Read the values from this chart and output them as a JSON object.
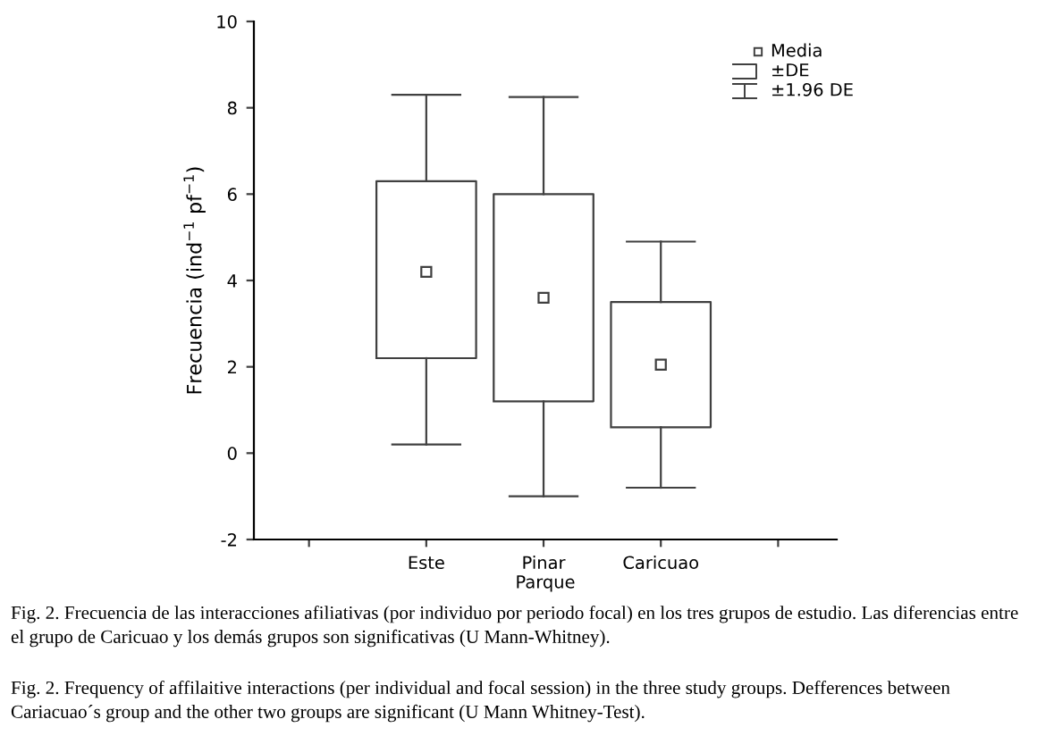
{
  "chart_data": {
    "type": "box",
    "xlabel": "Parque",
    "ylabel": "Frecuencia (ind$^{−1}$ pf$^{−1}$)",
    "categories": [
      "Este",
      "Pinar",
      "Caricuao"
    ],
    "boxes": [
      {
        "low": 0.2,
        "q1": 2.2,
        "median": 4.2,
        "q3": 6.3,
        "high": 8.3
      },
      {
        "low": -1.0,
        "q1": 1.2,
        "median": 3.6,
        "q3": 6.0,
        "high": 8.25
      },
      {
        "low": -0.8,
        "q1": 0.6,
        "median": 2.05,
        "q3": 3.5,
        "high": 4.9
      }
    ],
    "color": "#404040",
    "marker": "square",
    "ylim": [
      -2,
      10
    ],
    "yticks": [
      -2,
      0,
      2,
      4,
      6,
      8,
      10
    ],
    "grid": false,
    "annotations": [
      "Media",
      "±DE",
      "±1.96 DE",
      "Fig. 2. Frecuencia de las interacciones afiliativas (por individuo por periodo focal) en los tres grupos de estudio. Las diferencias entre el grupo de Caricuao y los demás grupos son significativas (U Mann-Whitney).",
      "Fig. 2. Frequency of affilaitive interactions (per individual and focal session) in the three study groups. Defferences between Cariacuao´s group and the other two groups are significant (U Mann Whitney-Test)."
    ]
  }
}
